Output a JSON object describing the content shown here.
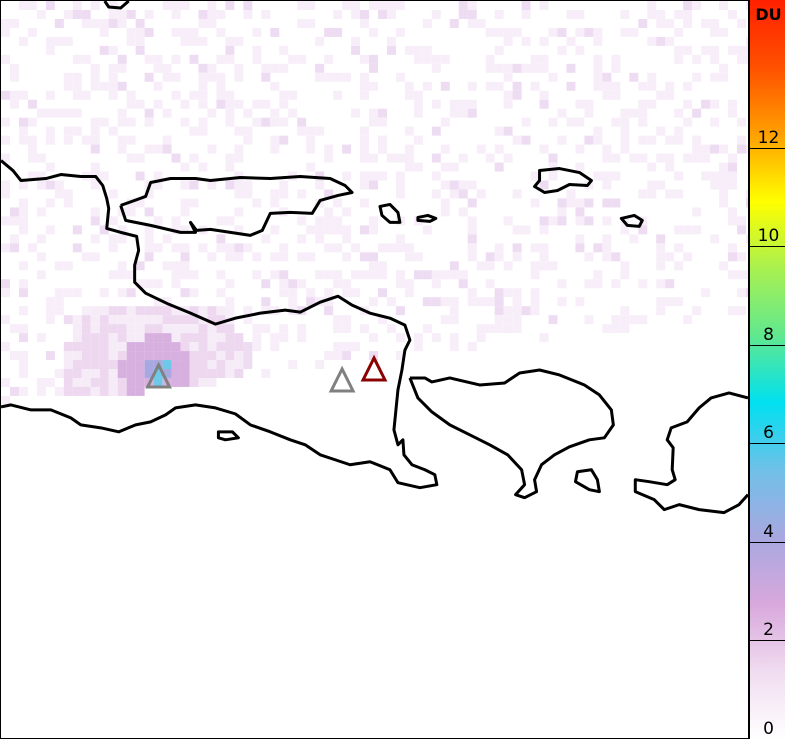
{
  "colorbar": {
    "unit": "DU",
    "min": 0,
    "max": 15,
    "ticks": [
      "0",
      "2",
      "4",
      "6",
      "8",
      "10",
      "12"
    ],
    "colors": [
      "#ffffff",
      "#f0dcf0",
      "#d8a8dc",
      "#a8a8e0",
      "#70c0e8",
      "#00e0f0",
      "#60e890",
      "#a8f050",
      "#ffff00",
      "#ffa000",
      "#ff5000",
      "#ff2000"
    ]
  },
  "map": {
    "volcanoes": [
      {
        "color": "#808080"
      },
      {
        "color": "#808080"
      },
      {
        "color": "#8b0000"
      }
    ]
  }
}
